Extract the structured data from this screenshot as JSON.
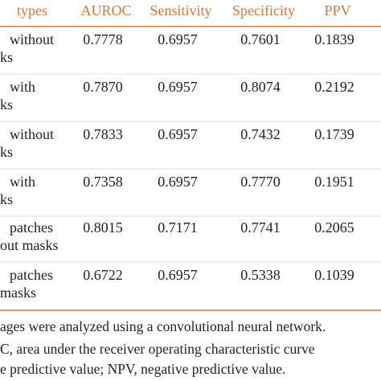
{
  "table": {
    "header": [
      "types",
      "AUROC",
      "Sensitivity",
      "Specificity",
      "PPV"
    ],
    "rows": [
      [
        [
          "without",
          "ks"
        ],
        "0.7778",
        "0.6957",
        "0.7601",
        "0.1839"
      ],
      [
        [
          "with",
          "ks"
        ],
        "0.7870",
        "0.6957",
        "0.8074",
        "0.2192"
      ],
      [
        [
          "without",
          "ks"
        ],
        "0.7833",
        "0.6957",
        "0.7432",
        "0.1739"
      ],
      [
        [
          "with",
          "ks"
        ],
        "0.7358",
        "0.6957",
        "0.7770",
        "0.1951"
      ],
      [
        [
          "patches",
          "out masks"
        ],
        "0.8015",
        "0.7171",
        "0.7741",
        "0.2065"
      ],
      [
        [
          "patches",
          "masks"
        ],
        "0.6722",
        "0.6957",
        "0.5338",
        "0.1039"
      ]
    ]
  },
  "footnotes": [
    "ages were analyzed using a convolutional neural network.",
    "C, area under the receiver operating characteristic curve",
    "e predictive value; NPV, negative predictive value."
  ]
}
